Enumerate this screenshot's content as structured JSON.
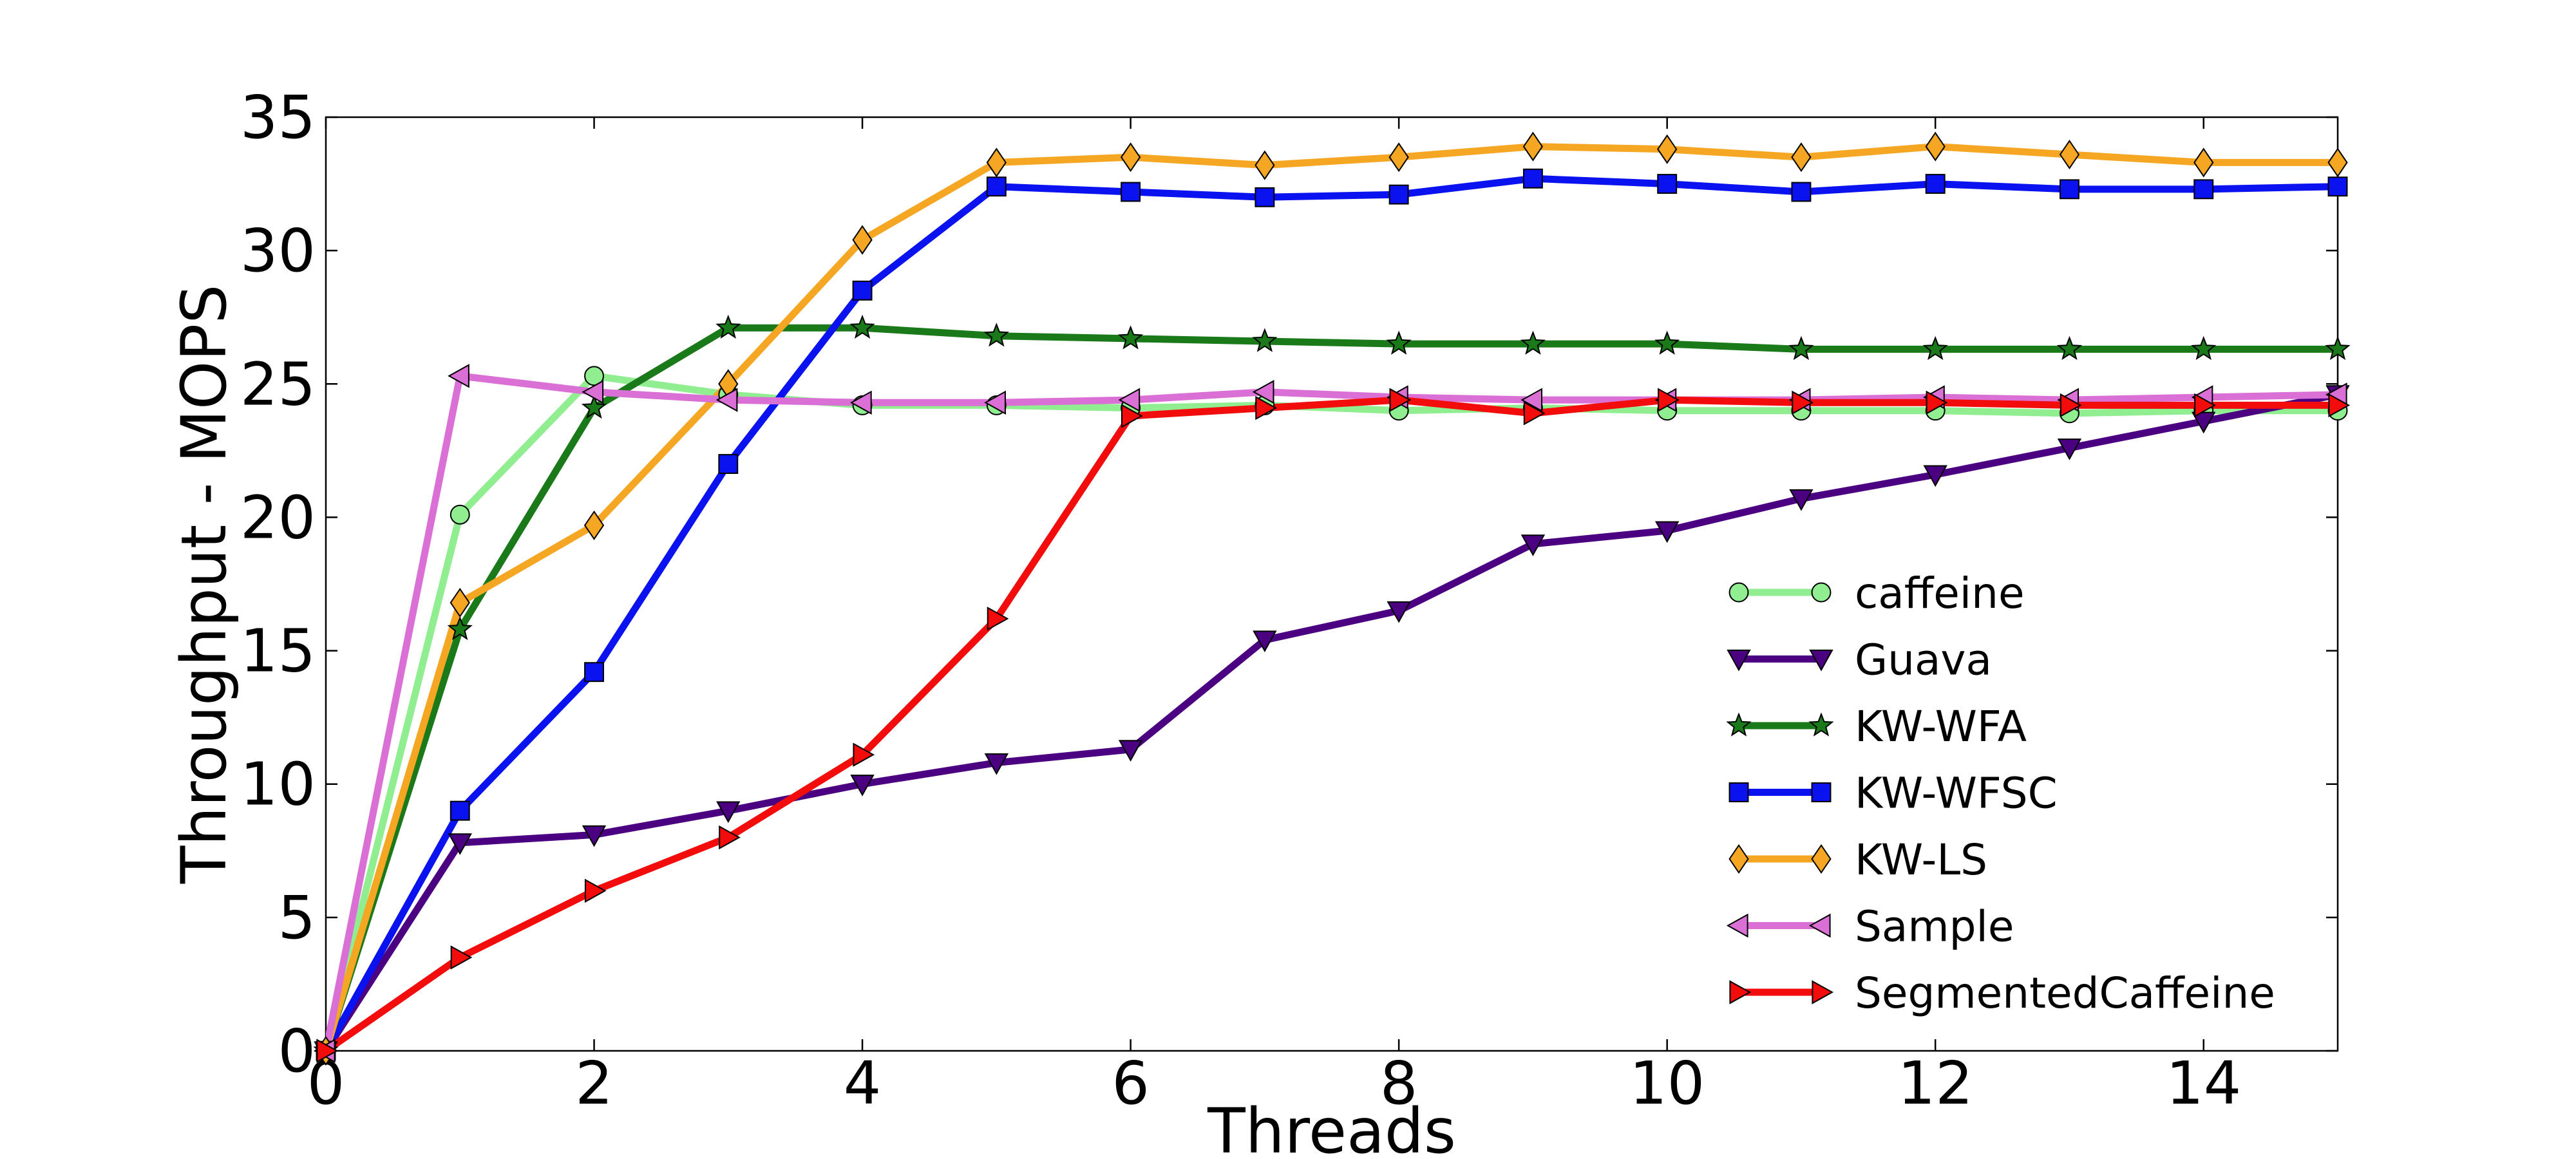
{
  "chart_data": {
    "type": "line",
    "title": "",
    "xlabel": "Threads",
    "ylabel": "Throughput - MOPS",
    "xlim": [
      0,
      15
    ],
    "ylim": [
      0,
      35
    ],
    "xticks": [
      0,
      2,
      4,
      6,
      8,
      10,
      12,
      14
    ],
    "yticks": [
      0,
      5,
      10,
      15,
      20,
      25,
      30,
      35
    ],
    "grid": false,
    "legend_position": "lower-right",
    "x": [
      0,
      1,
      2,
      3,
      4,
      5,
      6,
      7,
      8,
      9,
      10,
      11,
      12,
      13,
      14,
      15
    ],
    "series": [
      {
        "name": "caffeine",
        "color": "#90ee90",
        "marker": "circle",
        "values": [
          0,
          20.1,
          25.3,
          24.6,
          24.2,
          24.2,
          24.1,
          24.2,
          24.0,
          24.1,
          24.0,
          24.0,
          24.0,
          23.9,
          24.0,
          24.0
        ]
      },
      {
        "name": "Guava",
        "color": "#4b0082",
        "marker": "triangle-down",
        "values": [
          0,
          7.8,
          8.1,
          9.0,
          10.0,
          10.8,
          11.3,
          15.4,
          16.5,
          19.0,
          19.5,
          20.7,
          21.6,
          22.6,
          23.6,
          24.6
        ]
      },
      {
        "name": "KW-WFA",
        "color": "#1a7a1a",
        "marker": "star",
        "values": [
          0,
          15.8,
          24.1,
          27.1,
          27.1,
          26.8,
          26.7,
          26.6,
          26.5,
          26.5,
          26.5,
          26.3,
          26.3,
          26.3,
          26.3,
          26.3
        ]
      },
      {
        "name": "KW-WFSC",
        "color": "#0a12f0",
        "marker": "square",
        "values": [
          0,
          9.0,
          14.2,
          22.0,
          28.5,
          32.4,
          32.2,
          32.0,
          32.1,
          32.7,
          32.5,
          32.2,
          32.5,
          32.3,
          32.3,
          32.4
        ]
      },
      {
        "name": "KW-LS",
        "color": "#f5a623",
        "marker": "diamond",
        "values": [
          0,
          16.8,
          19.7,
          25.0,
          30.4,
          33.3,
          33.5,
          33.2,
          33.5,
          33.9,
          33.8,
          33.5,
          33.9,
          33.6,
          33.3,
          33.3
        ]
      },
      {
        "name": "Sample",
        "color": "#da70d6",
        "marker": "triangle-left",
        "values": [
          0,
          25.3,
          24.7,
          24.4,
          24.3,
          24.3,
          24.4,
          24.7,
          24.5,
          24.4,
          24.4,
          24.4,
          24.5,
          24.4,
          24.5,
          24.6
        ]
      },
      {
        "name": "SegmentedCaffeine",
        "color": "#f20c0c",
        "marker": "triangle-right",
        "values": [
          0,
          3.5,
          6.0,
          8.0,
          11.1,
          16.2,
          23.8,
          24.1,
          24.4,
          23.9,
          24.4,
          24.3,
          24.3,
          24.2,
          24.2,
          24.2
        ]
      }
    ]
  }
}
